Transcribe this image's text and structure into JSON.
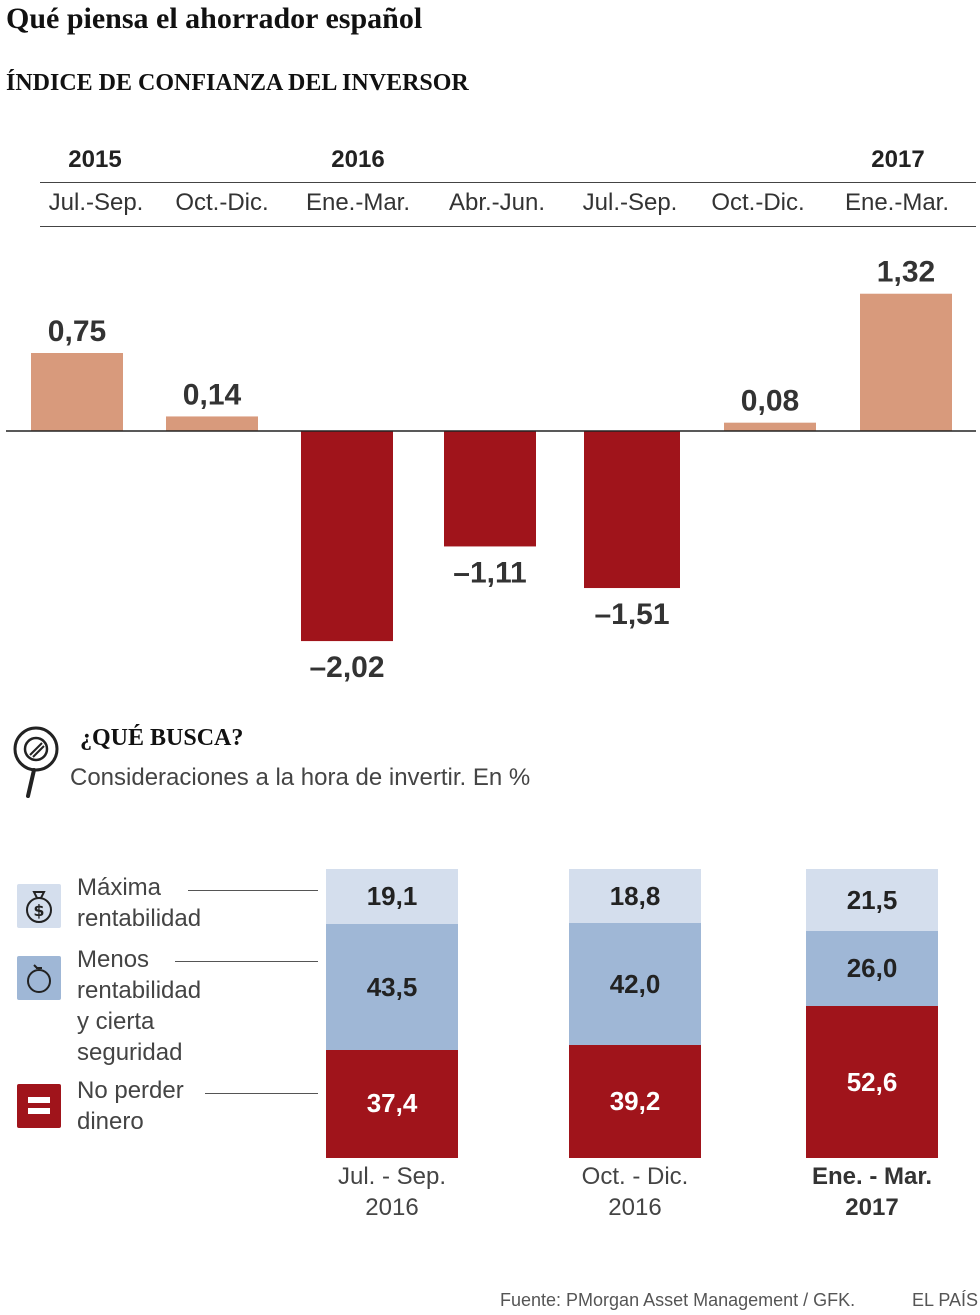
{
  "title": "Qué piensa el ahorrador español",
  "subtitle": "ÍNDICE DE CONFIANZA DEL INVERSOR",
  "colors": {
    "positive": "#d89a7c",
    "negative": "#a0141b",
    "light_blue": "#d4deed",
    "mid_blue": "#9fb7d6",
    "dark_red": "#a0141b"
  },
  "chart_data": [
    {
      "type": "bar",
      "years": [
        "2015",
        "2016",
        "2017"
      ],
      "categories": [
        "Jul.-Sep.",
        "Oct.-Dic.",
        "Ene.-Mar.",
        "Abr.-Jun.",
        "Jul.-Sep.",
        "Oct.-Dic.",
        "Ene.-Mar."
      ],
      "values": [
        0.75,
        0.14,
        -2.02,
        -1.11,
        -1.51,
        0.08,
        1.32
      ],
      "value_labels": [
        "0,75",
        "0,14",
        "–2,02",
        "–1,11",
        "–1,51",
        "0,08",
        "1,32"
      ],
      "title": "ÍNDICE DE CONFIANZA DEL INVERSOR"
    },
    {
      "type": "bar",
      "stacked": true,
      "title": "¿QUÉ BUSCA?",
      "subtitle": "Consideraciones a la hora de invertir. En %",
      "categories": [
        {
          "period": "Jul. - Sep.",
          "year": "2016"
        },
        {
          "period": "Oct. - Dic.",
          "year": "2016"
        },
        {
          "period": "Ene. - Mar.",
          "year": "2017"
        }
      ],
      "series": [
        {
          "name": "Máxima\nrentabilidad",
          "values": [
            19.1,
            18.8,
            21.5
          ],
          "labels": [
            "19,1",
            "18,8",
            "21,5"
          ]
        },
        {
          "name": "Menos\nrentabilidad\ny cierta\nseguridad",
          "values": [
            43.5,
            42.0,
            26.0
          ],
          "labels": [
            "43,5",
            "42,0",
            "26,0"
          ]
        },
        {
          "name": "No perder\ndinero",
          "values": [
            37.4,
            39.2,
            52.6
          ],
          "labels": [
            "37,4",
            "39,2",
            "52,6"
          ]
        }
      ]
    }
  ],
  "source": "Fuente: PMorgan Asset Management / GFK.",
  "brand": "EL PAÍS"
}
